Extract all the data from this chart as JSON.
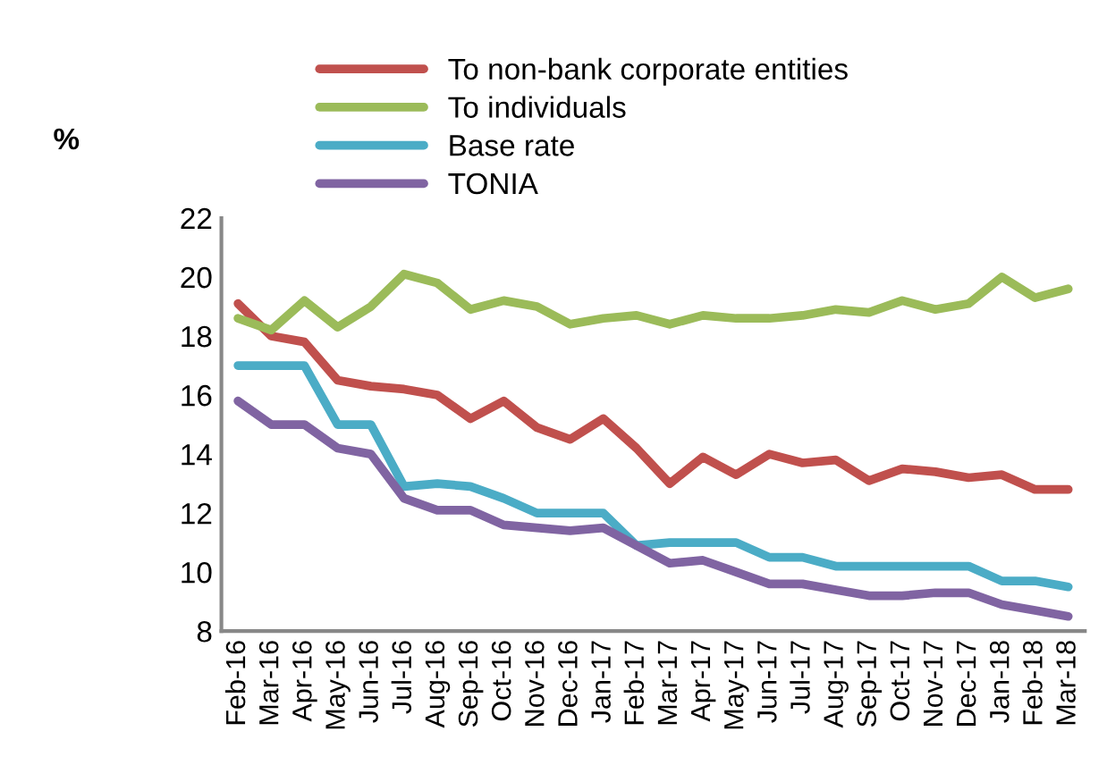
{
  "chart_data": {
    "type": "line",
    "ylabel": "%",
    "categories": [
      "Feb-16",
      "Mar-16",
      "Apr-16",
      "May-16",
      "Jun-16",
      "Jul-16",
      "Aug-16",
      "Sep-16",
      "Oct-16",
      "Nov-16",
      "Dec-16",
      "Jan-17",
      "Feb-17",
      "Mar-17",
      "Apr-17",
      "May-17",
      "Jun-17",
      "Jul-17",
      "Aug-17",
      "Sep-17",
      "Oct-17",
      "Nov-17",
      "Dec-17",
      "Jan-18",
      "Feb-18",
      "Mar-18"
    ],
    "series": [
      {
        "name": "To non-bank corporate entities",
        "color": "#c0504d",
        "values": [
          19.1,
          18.0,
          17.8,
          16.5,
          16.3,
          16.2,
          16.0,
          15.2,
          15.8,
          14.9,
          14.5,
          15.2,
          14.2,
          13.0,
          13.9,
          13.3,
          14.0,
          13.7,
          13.8,
          13.1,
          13.5,
          13.4,
          13.2,
          13.3,
          12.8,
          12.8
        ]
      },
      {
        "name": "To individuals",
        "color": "#9bbb59",
        "values": [
          18.6,
          18.2,
          19.2,
          18.3,
          19.0,
          20.1,
          19.8,
          18.9,
          19.2,
          19.0,
          18.4,
          18.6,
          18.7,
          18.4,
          18.7,
          18.6,
          18.6,
          18.7,
          18.9,
          18.8,
          19.2,
          18.9,
          19.1,
          20.0,
          19.3,
          19.6
        ]
      },
      {
        "name": "Base rate",
        "color": "#4bacc6",
        "values": [
          17.0,
          17.0,
          17.0,
          15.0,
          15.0,
          12.9,
          13.0,
          12.9,
          12.5,
          12.0,
          12.0,
          12.0,
          10.9,
          11.0,
          11.0,
          11.0,
          10.5,
          10.5,
          10.2,
          10.2,
          10.2,
          10.2,
          10.2,
          9.7,
          9.7,
          9.5
        ]
      },
      {
        "name": "TONIA",
        "color": "#8064a2",
        "values": [
          15.8,
          15.0,
          15.0,
          14.2,
          14.0,
          12.5,
          12.1,
          12.1,
          11.6,
          11.5,
          11.4,
          11.5,
          10.9,
          10.3,
          10.4,
          10.0,
          9.6,
          9.6,
          9.4,
          9.2,
          9.2,
          9.3,
          9.3,
          8.9,
          8.7,
          8.5
        ]
      }
    ],
    "ylim": [
      8,
      22
    ],
    "yticks": [
      8,
      10,
      12,
      14,
      16,
      18,
      20,
      22
    ],
    "grid": false,
    "legend": "top",
    "marker": "none",
    "line_style": "solid"
  }
}
